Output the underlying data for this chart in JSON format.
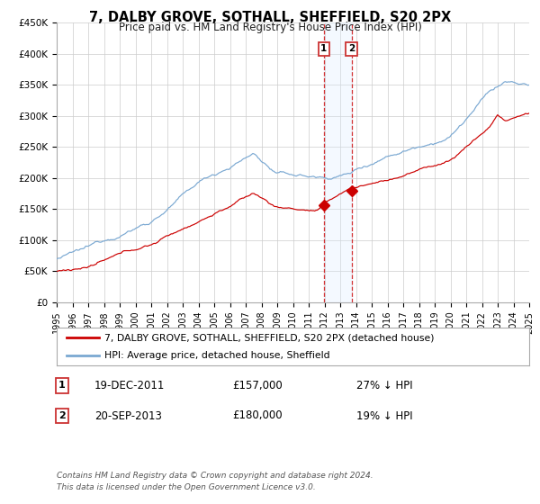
{
  "title": "7, DALBY GROVE, SOTHALL, SHEFFIELD, S20 2PX",
  "subtitle": "Price paid vs. HM Land Registry's House Price Index (HPI)",
  "ylim": [
    0,
    450000
  ],
  "xlim_start": 1995.0,
  "xlim_end": 2025.0,
  "yticks": [
    0,
    50000,
    100000,
    150000,
    200000,
    250000,
    300000,
    350000,
    400000,
    450000
  ],
  "ytick_labels": [
    "£0",
    "£50K",
    "£100K",
    "£150K",
    "£200K",
    "£250K",
    "£300K",
    "£350K",
    "£400K",
    "£450K"
  ],
  "red_line_color": "#cc0000",
  "blue_line_color": "#7aa8d2",
  "grid_color": "#cccccc",
  "background_color": "#ffffff",
  "marker1_date": 2011.96,
  "marker1_value": 157000,
  "marker2_date": 2013.72,
  "marker2_value": 180000,
  "vline1_x": 2011.96,
  "vline2_x": 2013.72,
  "shade_color": "#ddeeff",
  "annotation1": [
    "1",
    "19-DEC-2011",
    "£157,000",
    "27% ↓ HPI"
  ],
  "annotation2": [
    "2",
    "20-SEP-2013",
    "£180,000",
    "19% ↓ HPI"
  ],
  "legend1": "7, DALBY GROVE, SOTHALL, SHEFFIELD, S20 2PX (detached house)",
  "legend2": "HPI: Average price, detached house, Sheffield",
  "footer1": "Contains HM Land Registry data © Crown copyright and database right 2024.",
  "footer2": "This data is licensed under the Open Government Licence v3.0.",
  "label_box_color": "#cc3333"
}
